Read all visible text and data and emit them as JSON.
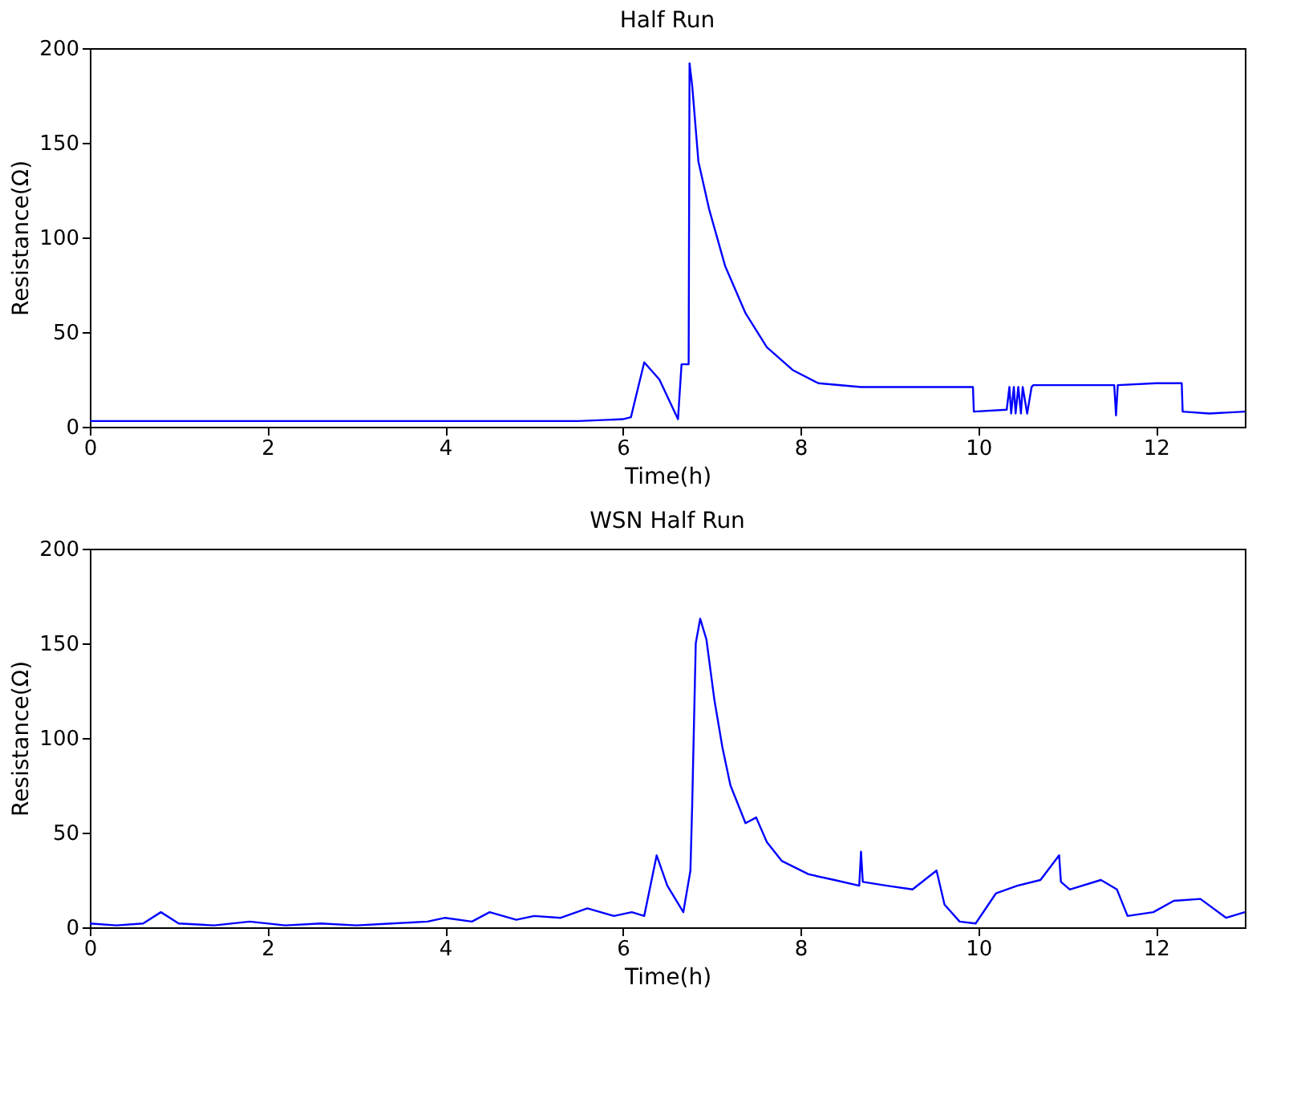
{
  "chart_data": [
    {
      "type": "line",
      "title": "Half Run",
      "xlabel": "Time(h)",
      "ylabel": "Resistance(Ω)",
      "xlim": [
        0,
        13
      ],
      "ylim": [
        0,
        200
      ],
      "xticks": [
        0,
        2,
        4,
        6,
        8,
        10,
        12
      ],
      "yticks": [
        0,
        50,
        100,
        150,
        200
      ],
      "grid": false,
      "line_style": "solid",
      "series": [
        {
          "color": "#0000ff",
          "x": [
            0,
            0.5,
            1,
            1.5,
            2,
            2.5,
            3,
            3.5,
            4,
            4.5,
            5,
            5.5,
            6.0,
            6.09,
            6.24,
            6.41,
            6.62,
            6.66,
            6.74,
            6.75,
            6.78,
            6.85,
            6.97,
            7.15,
            7.38,
            7.62,
            7.91,
            8.2,
            8.68,
            9.3,
            9.94,
            9.95,
            10.32,
            10.35,
            10.37,
            10.4,
            10.42,
            10.45,
            10.48,
            10.5,
            10.55,
            10.6,
            10.62,
            11.0,
            11.5,
            11.53,
            11.55,
            11.57,
            12.0,
            12.29,
            12.3,
            12.6,
            13.0
          ],
          "values": [
            3,
            3,
            3,
            3,
            3,
            3,
            3,
            3,
            3,
            3,
            3,
            3,
            4,
            5,
            34,
            25,
            4,
            33,
            33,
            192,
            180,
            140,
            115,
            85,
            60,
            42,
            30,
            23,
            21,
            21,
            21,
            8,
            9,
            21,
            7,
            21,
            7,
            21,
            7,
            21,
            7,
            21,
            22,
            22,
            22,
            22,
            6,
            22,
            23,
            23,
            8,
            7,
            8
          ]
        }
      ]
    },
    {
      "type": "line",
      "title": "WSN Half Run",
      "xlabel": "Time(h)",
      "ylabel": "Resistance(Ω)",
      "xlim": [
        0,
        13
      ],
      "ylim": [
        0,
        200
      ],
      "xticks": [
        0,
        2,
        4,
        6,
        8,
        10,
        12
      ],
      "yticks": [
        0,
        50,
        100,
        150,
        200
      ],
      "grid": false,
      "line_style": "solid",
      "series": [
        {
          "color": "#0000ff",
          "x": [
            0,
            0.3,
            0.6,
            0.8,
            1.0,
            1.4,
            1.8,
            2.2,
            2.6,
            3.0,
            3.4,
            3.8,
            4.0,
            4.3,
            4.5,
            4.8,
            5.0,
            5.3,
            5.6,
            5.9,
            6.1,
            6.24,
            6.38,
            6.5,
            6.68,
            6.76,
            6.78,
            6.82,
            6.87,
            6.94,
            7.03,
            7.12,
            7.21,
            7.38,
            7.5,
            7.62,
            7.79,
            8.09,
            8.38,
            8.66,
            8.68,
            8.7,
            8.97,
            9.26,
            9.53,
            9.62,
            9.79,
            9.97,
            10.2,
            10.44,
            10.7,
            10.91,
            10.93,
            11.03,
            11.38,
            11.56,
            11.68,
            11.97,
            12.2,
            12.5,
            12.79,
            13.0
          ],
          "values": [
            2,
            1,
            2,
            8,
            2,
            1,
            3,
            1,
            2,
            1,
            2,
            3,
            5,
            3,
            8,
            4,
            6,
            5,
            10,
            6,
            8,
            6,
            38,
            22,
            8,
            30,
            65,
            150,
            163,
            152,
            120,
            95,
            75,
            55,
            58,
            45,
            35,
            28,
            25,
            22,
            40,
            24,
            22,
            20,
            30,
            12,
            3,
            2,
            18,
            22,
            25,
            38,
            24,
            20,
            25,
            20,
            6,
            8,
            14,
            15,
            5,
            8
          ]
        }
      ]
    }
  ]
}
